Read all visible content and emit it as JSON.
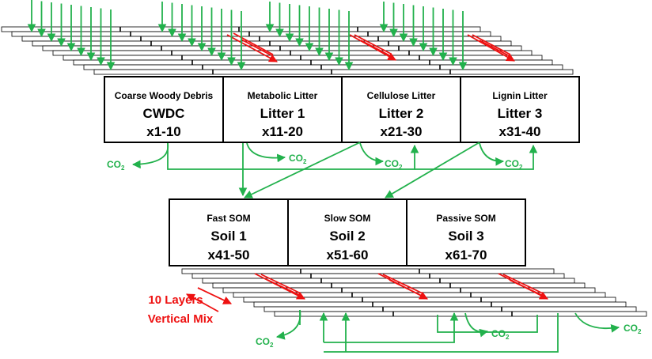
{
  "colors": {
    "flow": "#22b14c",
    "mix": "#ee1111",
    "box": "#000000"
  },
  "litter_pools": [
    {
      "name": "Coarse Woody Debris",
      "code": "CWDC",
      "range": "x1-10"
    },
    {
      "name": "Metabolic Litter",
      "code": "Litter 1",
      "range": "x11-20"
    },
    {
      "name": "Cellulose Litter",
      "code": "Litter 2",
      "range": "x21-30"
    },
    {
      "name": "Lignin Litter",
      "code": "Litter 3",
      "range": "x31-40"
    }
  ],
  "soil_pools": [
    {
      "name": "Fast SOM",
      "code": "Soil 1",
      "range": "x41-50"
    },
    {
      "name": "Slow SOM",
      "code": "Soil 2",
      "range": "x51-60"
    },
    {
      "name": "Passive SOM",
      "code": "Soil 3",
      "range": "x61-70"
    }
  ],
  "co2_label": {
    "base": "CO",
    "sub": "2"
  },
  "vertical_mix": {
    "line1": "10 Layers",
    "line2": "Vertical Mix"
  }
}
